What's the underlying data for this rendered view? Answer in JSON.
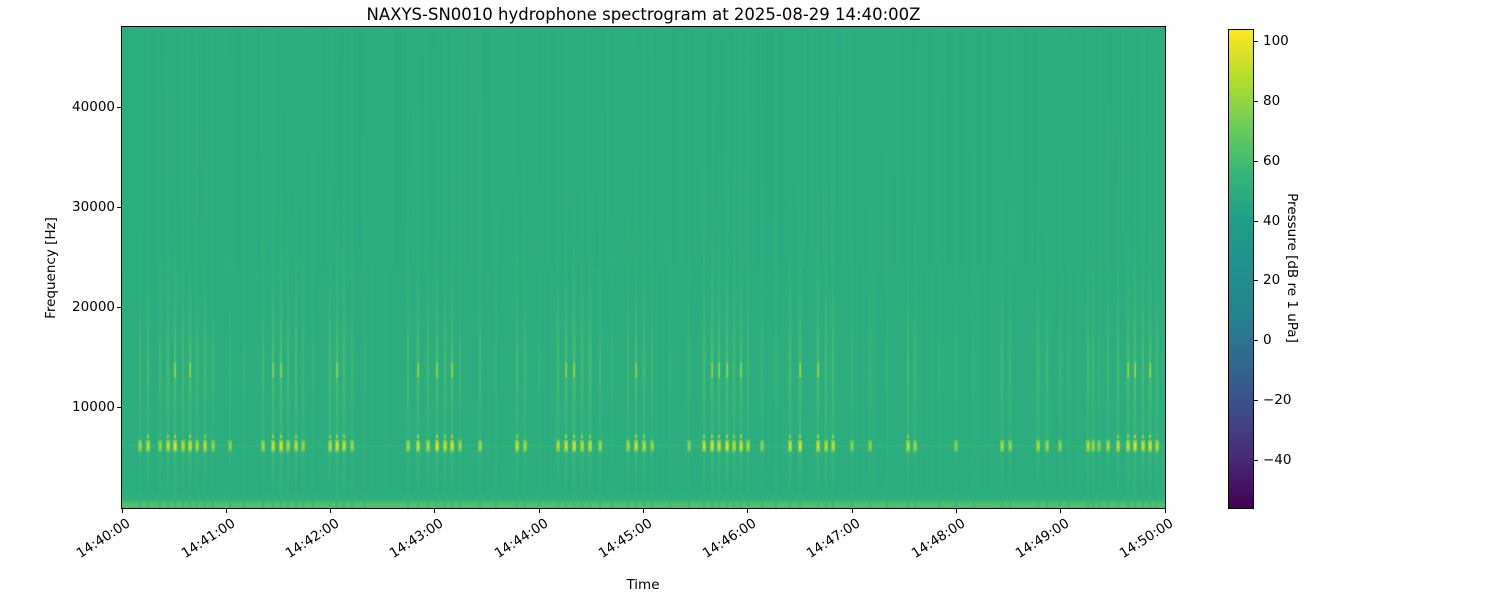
{
  "chart_data": {
    "type": "heatmap",
    "subtype": "spectrogram",
    "title": "NAXYS-SN0010 hydrophone spectrogram at 2025-08-29 14:40:00Z",
    "xlabel": "Time",
    "ylabel": "Frequency [Hz]",
    "x_tick_labels": [
      "14:40:00",
      "14:41:00",
      "14:42:00",
      "14:43:00",
      "14:44:00",
      "14:45:00",
      "14:46:00",
      "14:47:00",
      "14:48:00",
      "14:49:00",
      "14:50:00"
    ],
    "x_range_seconds": [
      0,
      600
    ],
    "y_ticks_hz": [
      10000,
      20000,
      30000,
      40000
    ],
    "ylim_hz": [
      0,
      48000
    ],
    "grid": false,
    "colorbar": {
      "label": "Pressure [dB re 1 uPa]",
      "ticks": [
        100,
        80,
        60,
        40,
        20,
        0,
        -20,
        -40
      ],
      "vmin": -56,
      "vmax": 104,
      "colormap": "viridis",
      "colormap_stops": [
        "#440154",
        "#482878",
        "#3e4a89",
        "#31688e",
        "#26828e",
        "#21918c",
        "#1f9e89",
        "#35b779",
        "#6ece58",
        "#b5de2b",
        "#fde725"
      ]
    },
    "background_level_db": 50,
    "texture": {
      "column_noise_db": 1.3,
      "seed": 20250829
    },
    "tonal_band": {
      "frequency_hz": 6200,
      "bandwidth_hz": 600,
      "peak_level_db": 95
    },
    "low_band": {
      "max_hz": 1600,
      "level_db": 64
    },
    "event_frequency_profile": [
      [
        48000,
        0.02
      ],
      [
        36000,
        0.07
      ],
      [
        30000,
        0.13
      ],
      [
        26000,
        0.22
      ],
      [
        22000,
        0.4
      ],
      [
        18500,
        0.6
      ],
      [
        16000,
        0.9
      ],
      [
        13500,
        1.0
      ],
      [
        11500,
        0.85
      ],
      [
        9500,
        0.66
      ],
      [
        8000,
        0.58
      ],
      [
        6800,
        0.62
      ],
      [
        5800,
        0.66
      ],
      [
        4600,
        0.55
      ],
      [
        3000,
        0.42
      ],
      [
        1800,
        0.28
      ],
      [
        800,
        0.15
      ],
      [
        0,
        0.08
      ]
    ],
    "events": [
      [
        10.4,
        0.55
      ],
      [
        15.0,
        0.8
      ],
      [
        21.9,
        0.5
      ],
      [
        26.5,
        0.85
      ],
      [
        30.5,
        1.0
      ],
      [
        35.1,
        0.7
      ],
      [
        39.1,
        0.9
      ],
      [
        43.1,
        0.6
      ],
      [
        47.7,
        0.75
      ],
      [
        52.3,
        0.45
      ],
      [
        62.1,
        0.3
      ],
      [
        70.0,
        0.2
      ],
      [
        81.1,
        0.5
      ],
      [
        86.9,
        0.9
      ],
      [
        91.5,
        1.0
      ],
      [
        95.5,
        0.65
      ],
      [
        100.1,
        0.8
      ],
      [
        104.1,
        0.4
      ],
      [
        110.0,
        0.22
      ],
      [
        119.7,
        0.75
      ],
      [
        123.7,
        1.0
      ],
      [
        127.7,
        0.85
      ],
      [
        132.3,
        0.5
      ],
      [
        140.0,
        0.25
      ],
      [
        164.5,
        0.6
      ],
      [
        170.3,
        0.9
      ],
      [
        176.0,
        0.7
      ],
      [
        181.2,
        1.0
      ],
      [
        185.8,
        0.8
      ],
      [
        189.8,
        0.95
      ],
      [
        194.4,
        0.5
      ],
      [
        205.9,
        0.55
      ],
      [
        215.0,
        0.25
      ],
      [
        227.2,
        0.8
      ],
      [
        231.8,
        0.6
      ],
      [
        240.0,
        0.2
      ],
      [
        250.8,
        0.7
      ],
      [
        255.4,
        0.9
      ],
      [
        260.0,
        1.0
      ],
      [
        264.6,
        0.75
      ],
      [
        269.2,
        0.85
      ],
      [
        275.0,
        0.5
      ],
      [
        282.0,
        0.25
      ],
      [
        291.1,
        0.6
      ],
      [
        295.7,
        0.9
      ],
      [
        300.3,
        0.75
      ],
      [
        304.9,
        0.45
      ],
      [
        315.0,
        0.2
      ],
      [
        326.0,
        0.3
      ],
      [
        334.8,
        0.8
      ],
      [
        339.4,
        1.0
      ],
      [
        343.4,
        0.9
      ],
      [
        348.0,
        1.0
      ],
      [
        352.1,
        0.75
      ],
      [
        356.1,
        0.9
      ],
      [
        360.1,
        0.6
      ],
      [
        368.2,
        0.4
      ],
      [
        376.0,
        0.25
      ],
      [
        384.3,
        0.85
      ],
      [
        390.0,
        1.0
      ],
      [
        400.4,
        0.9
      ],
      [
        405.0,
        0.7
      ],
      [
        409.0,
        0.8
      ],
      [
        420.0,
        0.3
      ],
      [
        430.3,
        0.35
      ],
      [
        440.0,
        0.2
      ],
      [
        452.2,
        0.75
      ],
      [
        456.2,
        0.5
      ],
      [
        470.0,
        0.25
      ],
      [
        480.0,
        0.3
      ],
      [
        490.0,
        0.2
      ],
      [
        506.3,
        0.6
      ],
      [
        510.9,
        0.45
      ],
      [
        527.0,
        0.65
      ],
      [
        532.2,
        0.5
      ],
      [
        539.6,
        0.4
      ],
      [
        545.0,
        0.25
      ],
      [
        555.7,
        0.7
      ],
      [
        558.6,
        0.5
      ],
      [
        562.0,
        0.3
      ],
      [
        567.2,
        0.6
      ],
      [
        573.0,
        0.8
      ],
      [
        578.8,
        0.9
      ],
      [
        582.8,
        1.0
      ],
      [
        587.4,
        0.85
      ],
      [
        591.4,
        0.95
      ],
      [
        595.4,
        0.7
      ]
    ]
  }
}
